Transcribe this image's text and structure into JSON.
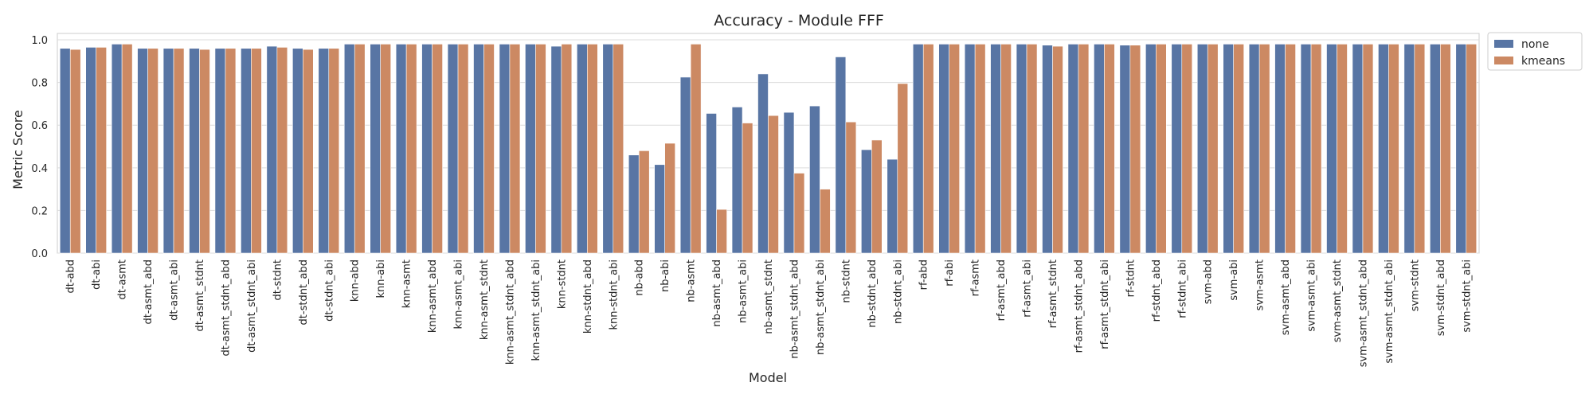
{
  "chart_data": {
    "type": "bar",
    "title": "Accuracy - Module FFF",
    "xlabel": "Model",
    "ylabel": "Metric Score",
    "ylim": [
      0,
      1.03
    ],
    "yticks": [
      0.0,
      0.2,
      0.4,
      0.6,
      0.8,
      1.0
    ],
    "ytick_labels": [
      "0.0",
      "0.2",
      "0.4",
      "0.6",
      "0.8",
      "1.0"
    ],
    "grid": true,
    "legend_position": "outside-top-right",
    "colors": {
      "none": "#5875a4",
      "kmeans": "#cc8963"
    },
    "categories": [
      "dt-abd",
      "dt-abi",
      "dt-asmt",
      "dt-asmt_abd",
      "dt-asmt_abi",
      "dt-asmt_stdnt",
      "dt-asmt_stdnt_abd",
      "dt-asmt_stdnt_abi",
      "dt-stdnt",
      "dt-stdnt_abd",
      "dt-stdnt_abi",
      "knn-abd",
      "knn-abi",
      "knn-asmt",
      "knn-asmt_abd",
      "knn-asmt_abi",
      "knn-asmt_stdnt",
      "knn-asmt_stdnt_abd",
      "knn-asmt_stdnt_abi",
      "knn-stdnt",
      "knn-stdnt_abd",
      "knn-stdnt_abi",
      "nb-abd",
      "nb-abi",
      "nb-asmt",
      "nb-asmt_abd",
      "nb-asmt_abi",
      "nb-asmt_stdnt",
      "nb-asmt_stdnt_abd",
      "nb-asmt_stdnt_abi",
      "nb-stdnt",
      "nb-stdnt_abd",
      "nb-stdnt_abi",
      "rf-abd",
      "rf-abi",
      "rf-asmt",
      "rf-asmt_abd",
      "rf-asmt_abi",
      "rf-asmt_stdnt",
      "rf-asmt_stdnt_abd",
      "rf-asmt_stdnt_abi",
      "rf-stdnt",
      "rf-stdnt_abd",
      "rf-stdnt_abi",
      "svm-abd",
      "svm-abi",
      "svm-asmt",
      "svm-asmt_abd",
      "svm-asmt_abi",
      "svm-asmt_stdnt",
      "svm-asmt_stdnt_abd",
      "svm-asmt_stdnt_abi",
      "svm-stdnt",
      "svm-stdnt_abd",
      "svm-stdnt_abi"
    ],
    "series": [
      {
        "name": "none",
        "values": [
          0.96,
          0.965,
          0.98,
          0.96,
          0.96,
          0.96,
          0.96,
          0.96,
          0.97,
          0.96,
          0.96,
          0.98,
          0.98,
          0.98,
          0.98,
          0.98,
          0.98,
          0.98,
          0.98,
          0.97,
          0.98,
          0.98,
          0.46,
          0.415,
          0.825,
          0.655,
          0.685,
          0.84,
          0.66,
          0.69,
          0.92,
          0.485,
          0.44,
          0.98,
          0.98,
          0.98,
          0.98,
          0.98,
          0.975,
          0.98,
          0.98,
          0.975,
          0.98,
          0.98,
          0.98,
          0.98,
          0.98,
          0.98,
          0.98,
          0.98,
          0.98,
          0.98,
          0.98,
          0.98,
          0.98
        ]
      },
      {
        "name": "kmeans",
        "values": [
          0.955,
          0.965,
          0.98,
          0.96,
          0.96,
          0.955,
          0.96,
          0.96,
          0.965,
          0.955,
          0.96,
          0.98,
          0.98,
          0.98,
          0.98,
          0.98,
          0.98,
          0.98,
          0.98,
          0.98,
          0.98,
          0.98,
          0.48,
          0.515,
          0.98,
          0.205,
          0.61,
          0.645,
          0.375,
          0.3,
          0.615,
          0.53,
          0.795,
          0.98,
          0.98,
          0.98,
          0.98,
          0.98,
          0.97,
          0.98,
          0.98,
          0.975,
          0.98,
          0.98,
          0.98,
          0.98,
          0.98,
          0.98,
          0.98,
          0.98,
          0.98,
          0.98,
          0.98,
          0.98,
          0.98
        ]
      }
    ]
  }
}
